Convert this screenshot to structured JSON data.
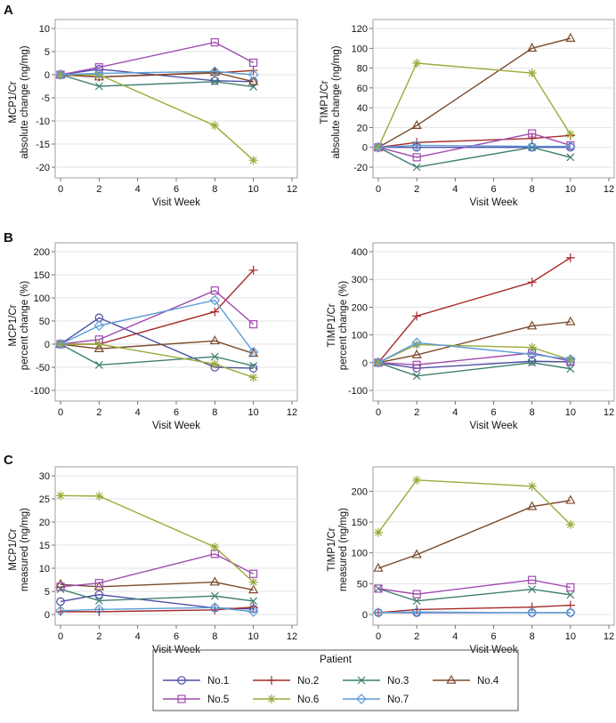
{
  "panels": {
    "A": {
      "letter": "A"
    },
    "B": {
      "letter": "B"
    },
    "C": {
      "letter": "C"
    }
  },
  "legend": {
    "title": "Patient",
    "entries": [
      {
        "name": "No.1",
        "color": "#4f4fa8",
        "marker": "circle"
      },
      {
        "name": "No.2",
        "color": "#a52a2a",
        "marker": "plus"
      },
      {
        "name": "No.3",
        "color": "#3f7f6f",
        "marker": "x"
      },
      {
        "name": "No.4",
        "color": "#7a4a2a",
        "marker": "triangle"
      },
      {
        "name": "No.5",
        "color": "#a04ab0",
        "marker": "square"
      },
      {
        "name": "No.6",
        "color": "#9aaa3a",
        "marker": "star"
      },
      {
        "name": "No.7",
        "color": "#5b9bd5",
        "marker": "diamond"
      }
    ]
  },
  "chart_data": [
    {
      "id": "A-left",
      "panel": "A",
      "type": "line",
      "ylabel": [
        "MCP1/Cr",
        "absolute change (ng/mg)"
      ],
      "xlabel": "Visit Week",
      "xlim": [
        0,
        12
      ],
      "xticks": [
        0,
        2,
        4,
        6,
        8,
        10,
        12
      ],
      "ylim": [
        -20,
        10
      ],
      "yticks": [
        -20,
        -15,
        -10,
        -5,
        0,
        5,
        10
      ],
      "x": [
        0,
        2,
        8,
        10
      ],
      "series": [
        {
          "name": "No.1",
          "values": [
            0,
            1.2,
            -1.3,
            -1.5
          ]
        },
        {
          "name": "No.2",
          "values": [
            0,
            -0.5,
            0.4,
            0.9
          ]
        },
        {
          "name": "No.3",
          "values": [
            0,
            -2.5,
            -1.5,
            -2.6
          ]
        },
        {
          "name": "No.4",
          "values": [
            0,
            -0.5,
            0.5,
            -1.5
          ]
        },
        {
          "name": "No.5",
          "values": [
            0,
            1.6,
            7,
            2.6
          ]
        },
        {
          "name": "No.6",
          "values": [
            0,
            0,
            -11,
            -18.5
          ]
        },
        {
          "name": "No.7",
          "values": [
            0,
            0.3,
            0.7,
            0
          ]
        }
      ]
    },
    {
      "id": "A-right",
      "panel": "A",
      "type": "line",
      "ylabel": [
        "TIMP1/Cr",
        "absolute change (ng/mg)"
      ],
      "xlabel": "Visit Week",
      "xlim": [
        0,
        12
      ],
      "xticks": [
        0,
        2,
        4,
        6,
        8,
        10,
        12
      ],
      "ylim": [
        -20,
        120
      ],
      "yticks": [
        -20,
        0,
        20,
        40,
        60,
        80,
        100,
        120
      ],
      "x": [
        0,
        2,
        8,
        10
      ],
      "series": [
        {
          "name": "No.1",
          "values": [
            0,
            0,
            0,
            0
          ]
        },
        {
          "name": "No.2",
          "values": [
            0,
            5,
            9,
            12
          ]
        },
        {
          "name": "No.3",
          "values": [
            0,
            -20,
            0,
            -10
          ]
        },
        {
          "name": "No.4",
          "values": [
            0,
            22,
            100,
            110
          ]
        },
        {
          "name": "No.5",
          "values": [
            0,
            -10,
            14,
            2
          ]
        },
        {
          "name": "No.6",
          "values": [
            0,
            85,
            75,
            13
          ]
        },
        {
          "name": "No.7",
          "values": [
            0,
            2,
            1,
            1
          ]
        }
      ]
    },
    {
      "id": "B-left",
      "panel": "B",
      "type": "line",
      "ylabel": [
        "MCP1/Cr",
        "percent change (%)"
      ],
      "xlabel": "Visit Week",
      "xlim": [
        0,
        12
      ],
      "xticks": [
        0,
        2,
        4,
        6,
        8,
        10,
        12
      ],
      "ylim": [
        -100,
        200
      ],
      "yticks": [
        -100,
        -50,
        0,
        50,
        100,
        150,
        200
      ],
      "x": [
        0,
        2,
        8,
        10
      ],
      "series": [
        {
          "name": "No.1",
          "values": [
            0,
            57,
            -50,
            -52
          ]
        },
        {
          "name": "No.2",
          "values": [
            0,
            0,
            70,
            160
          ]
        },
        {
          "name": "No.3",
          "values": [
            0,
            -45,
            -27,
            -47
          ]
        },
        {
          "name": "No.4",
          "values": [
            0,
            -10,
            7,
            -20
          ]
        },
        {
          "name": "No.5",
          "values": [
            0,
            10,
            116,
            43
          ]
        },
        {
          "name": "No.6",
          "values": [
            0,
            0,
            -43,
            -72
          ]
        },
        {
          "name": "No.7",
          "values": [
            0,
            40,
            95,
            -17
          ]
        }
      ]
    },
    {
      "id": "B-right",
      "panel": "B",
      "type": "line",
      "ylabel": [
        "TIMP1/Cr",
        "percent change (%)"
      ],
      "xlabel": "Visit Week",
      "xlim": [
        0,
        12
      ],
      "xticks": [
        0,
        2,
        4,
        6,
        8,
        10,
        12
      ],
      "ylim": [
        -100,
        400
      ],
      "yticks": [
        -100,
        0,
        100,
        200,
        300,
        400
      ],
      "x": [
        0,
        2,
        8,
        10
      ],
      "series": [
        {
          "name": "No.1",
          "values": [
            0,
            -20,
            5,
            3
          ]
        },
        {
          "name": "No.2",
          "values": [
            0,
            168,
            290,
            378
          ]
        },
        {
          "name": "No.3",
          "values": [
            0,
            -48,
            0,
            -22
          ]
        },
        {
          "name": "No.4",
          "values": [
            0,
            28,
            132,
            147
          ]
        },
        {
          "name": "No.5",
          "values": [
            0,
            -8,
            35,
            5
          ]
        },
        {
          "name": "No.6",
          "values": [
            0,
            65,
            55,
            10
          ]
        },
        {
          "name": "No.7",
          "values": [
            0,
            72,
            30,
            12
          ]
        }
      ]
    },
    {
      "id": "C-left",
      "panel": "C",
      "type": "line",
      "ylabel": [
        "MCP1/Cr",
        "measured (ng/mg)"
      ],
      "xlabel": "Visit Week",
      "xlim": [
        0,
        12
      ],
      "xticks": [
        0,
        2,
        4,
        6,
        8,
        10,
        12
      ],
      "ylim": [
        0,
        30
      ],
      "yticks": [
        0,
        5,
        10,
        15,
        20,
        25,
        30
      ],
      "x": [
        0,
        2,
        8,
        10
      ],
      "series": [
        {
          "name": "No.1",
          "values": [
            2.8,
            4.3,
            1.4,
            1.2
          ]
        },
        {
          "name": "No.2",
          "values": [
            0.6,
            0.6,
            1.0,
            1.6
          ]
        },
        {
          "name": "No.3",
          "values": [
            5.5,
            3.0,
            4.0,
            2.9
          ]
        },
        {
          "name": "No.4",
          "values": [
            6.5,
            6.0,
            7.0,
            5.3
          ]
        },
        {
          "name": "No.5",
          "values": [
            6.0,
            6.8,
            13.1,
            8.8
          ]
        },
        {
          "name": "No.6",
          "values": [
            25.7,
            25.6,
            14.6,
            7.0
          ]
        },
        {
          "name": "No.7",
          "values": [
            0.8,
            1.1,
            1.5,
            0.6
          ]
        }
      ]
    },
    {
      "id": "C-right",
      "panel": "C",
      "type": "line",
      "ylabel": [
        "TIMP1/Cr",
        "measured (ng/mg)"
      ],
      "xlabel": "Visit Week",
      "xlim": [
        0,
        12
      ],
      "xticks": [
        0,
        2,
        4,
        6,
        8,
        10,
        12
      ],
      "ylim": [
        0,
        225
      ],
      "yticks": [
        0,
        50,
        100,
        150,
        200
      ],
      "x": [
        0,
        2,
        8,
        10
      ],
      "series": [
        {
          "name": "No.1",
          "values": [
            3,
            3,
            3,
            3
          ]
        },
        {
          "name": "No.2",
          "values": [
            3,
            8,
            12,
            15
          ]
        },
        {
          "name": "No.3",
          "values": [
            42,
            22,
            41,
            32
          ]
        },
        {
          "name": "No.4",
          "values": [
            75,
            97,
            175,
            185
          ]
        },
        {
          "name": "No.5",
          "values": [
            42,
            33,
            56,
            44
          ]
        },
        {
          "name": "No.6",
          "values": [
            133,
            218,
            208,
            146
          ]
        },
        {
          "name": "No.7",
          "values": [
            3,
            4,
            3,
            3
          ]
        }
      ]
    }
  ]
}
